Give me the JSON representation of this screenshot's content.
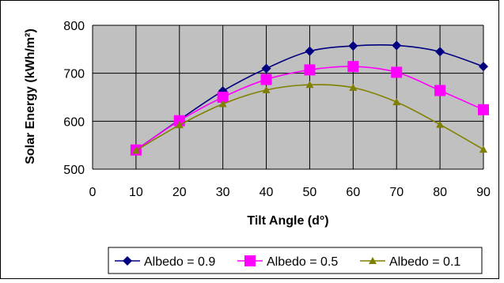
{
  "colors": {
    "plot_bg": "#C0C0C0",
    "grid": "#000000",
    "series": [
      "#000080",
      "#FF00FF",
      "#808000"
    ]
  },
  "chart_data": {
    "type": "line",
    "xlabel": "Tilt Angle (d°)",
    "ylabel": "Solar Energy (kWh/m²)",
    "xlim": [
      0,
      90
    ],
    "ylim": [
      500,
      800
    ],
    "x_ticks": [
      0,
      10,
      20,
      30,
      40,
      50,
      60,
      70,
      80,
      90
    ],
    "y_ticks": [
      500,
      600,
      700,
      800
    ],
    "x": [
      10,
      20,
      30,
      40,
      50,
      60,
      70,
      80,
      90
    ],
    "grid": "both",
    "legend_position": "bottom",
    "series": [
      {
        "name": "Albedo = 0.9",
        "marker": "diamond",
        "values": [
          540,
          603,
          663,
          710,
          746,
          757,
          758,
          745,
          714
        ]
      },
      {
        "name": "Albedo = 0.5",
        "marker": "square",
        "values": [
          540,
          601,
          650,
          687,
          707,
          714,
          702,
          664,
          624
        ]
      },
      {
        "name": "Albedo = 0.1",
        "marker": "triangle",
        "values": [
          539,
          592,
          636,
          665,
          676,
          670,
          640,
          593,
          541
        ]
      }
    ]
  }
}
